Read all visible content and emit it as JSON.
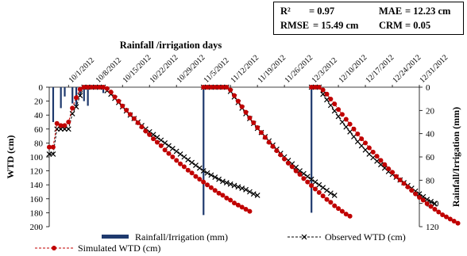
{
  "stats": {
    "r2_label": "R² ",
    "r2_value": "= 0.97",
    "mae_label": "MAE",
    "mae_value": "= 12.23 cm",
    "rmse_label": "RMSE",
    "rmse_value": "= 15.49 cm",
    "crm_label": "CRM",
    "crm_value": "= 0.05"
  },
  "chart_data": {
    "type": "line",
    "title": "Rainfall /irrigation  days",
    "ylabel": "WTD (cm)",
    "y2label": "Rainfall/Irrigation (mm)",
    "ylim": [
      0,
      200
    ],
    "y_inverted": true,
    "y_ticks": [
      0,
      20,
      40,
      60,
      80,
      100,
      120,
      140,
      160,
      180,
      200
    ],
    "y2lim": [
      0,
      120
    ],
    "y2_inverted": true,
    "y2_ticks": [
      0,
      20,
      40,
      60,
      80,
      100,
      120
    ],
    "xlim": [
      "9/26/2012",
      "12/31/2012"
    ],
    "x_ticks": [
      "10/1/2012",
      "10/8/2012",
      "10/15/2012",
      "10/22/2012",
      "10/29/2012",
      "11/5/2012",
      "11/12/2012",
      "11/19/2012",
      "11/26/2012",
      "12/3/2012",
      "12/10/2012",
      "12/17/2012",
      "12/24/2012",
      "12/31/2012"
    ],
    "legend_position": "bottom",
    "grid": false,
    "colors": {
      "rain": "#1f3a6e",
      "observed": "#000000",
      "simulated": "#c00000"
    },
    "rainfall": {
      "name": "Rainfall/Irrigation (mm)",
      "dates": [
        "9/27/2012",
        "9/29/2012",
        "9/30/2012",
        "10/2/2012",
        "10/3/2012",
        "10/4/2012",
        "10/5/2012",
        "10/6/2012",
        "10/10/2012",
        "11/5/2012",
        "12/3/2012"
      ],
      "values": [
        30,
        18,
        8,
        14,
        16,
        8,
        12,
        16,
        5,
        110,
        108
      ]
    },
    "series": [
      {
        "name": "Observed WTD (cm)",
        "segments": [
          {
            "start": "9/26/2012",
            "values": [
              96,
              96,
              60,
              60,
              60,
              60,
              38,
              28,
              12,
              0,
              0,
              0,
              0,
              0,
              0,
              5,
              10,
              16,
              22,
              28,
              34,
              40,
              45,
              50,
              55,
              60,
              64,
              68,
              72,
              76,
              80,
              84,
              88,
              92,
              96,
              100,
              104,
              108,
              112,
              116,
              120,
              123,
              126,
              129,
              132,
              135,
              137,
              139,
              141,
              143,
              145,
              147,
              150,
              153,
              155
            ]
          },
          {
            "start": "11/5/2012",
            "values": [
              0,
              0,
              0,
              0,
              0,
              0,
              0,
              6,
              14,
              22,
              30,
              38,
              45,
              52,
              59,
              65,
              71,
              77,
              83,
              89,
              95,
              100,
              105,
              110,
              115,
              120,
              124,
              128,
              132,
              136,
              140,
              144,
              148,
              152,
              155
            ]
          },
          {
            "start": "12/3/2012",
            "values": [
              0,
              0,
              0,
              10,
              18,
              26,
              34,
              42,
              50,
              57,
              64,
              71,
              78,
              84,
              90,
              96,
              101,
              106,
              111,
              116,
              121,
              125,
              129,
              133,
              137,
              141,
              145,
              149,
              153,
              157,
              161,
              164,
              167
            ]
          }
        ]
      },
      {
        "name": "Simulated WTD (cm)",
        "segments": [
          {
            "start": "9/26/2012",
            "values": [
              86,
              86,
              52,
              55,
              55,
              50,
              30,
              15,
              3,
              0,
              0,
              0,
              0,
              0,
              0,
              2,
              7,
              14,
              20,
              27,
              33,
              39,
              45,
              51,
              57,
              63,
              68,
              74,
              79,
              84,
              90,
              95,
              100,
              105,
              110,
              114,
              119,
              123,
              128,
              132,
              136,
              140,
              144,
              148,
              152,
              155,
              159,
              162,
              166,
              169,
              172,
              175,
              178
            ]
          },
          {
            "start": "11/5/2012",
            "values": [
              0,
              0,
              0,
              0,
              0,
              0,
              0,
              4,
              12,
              20,
              28,
              36,
              44,
              51,
              58,
              65,
              72,
              79,
              85,
              91,
              97,
              103,
              109,
              114,
              120,
              125,
              131,
              136,
              141,
              146,
              151,
              156,
              161,
              165,
              170,
              174,
              178,
              182,
              185
            ]
          },
          {
            "start": "12/3/2012",
            "values": [
              0,
              0,
              0,
              4,
              10,
              17,
              24,
              32,
              39,
              46,
              53,
              60,
              67,
              74,
              80,
              87,
              93,
              99,
              105,
              111,
              117,
              122,
              128,
              133,
              138,
              143,
              148,
              153,
              158,
              162,
              167,
              171,
              175,
              179,
              183,
              186,
              189,
              192,
              195
            ]
          }
        ]
      }
    ]
  }
}
